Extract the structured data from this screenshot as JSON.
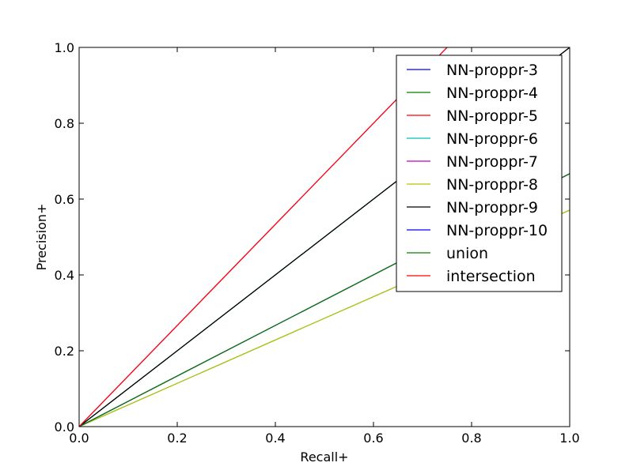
{
  "chart_data": {
    "type": "line",
    "xlabel": "Recall+",
    "ylabel": "Precision+",
    "xlim": [
      0.0,
      1.0
    ],
    "ylim": [
      0.0,
      1.0
    ],
    "xticks": [
      "0.0",
      "0.2",
      "0.4",
      "0.6",
      "0.8",
      "1.0"
    ],
    "yticks": [
      "0.0",
      "0.2",
      "0.4",
      "0.6",
      "0.8",
      "1.0"
    ],
    "grid": false,
    "legend_position": "top-right",
    "series": [
      {
        "name": "NN-proppr-3",
        "color": "#0000ff",
        "x": [
          0.0,
          1.0
        ],
        "y": [
          0.0,
          1.0
        ]
      },
      {
        "name": "NN-proppr-4",
        "color": "#008000",
        "x": [
          0.0,
          1.0
        ],
        "y": [
          0.0,
          1.0
        ]
      },
      {
        "name": "NN-proppr-5",
        "color": "#ff0000",
        "x": [
          0.0,
          1.0
        ],
        "y": [
          0.0,
          0.667
        ]
      },
      {
        "name": "NN-proppr-6",
        "color": "#00bfbf",
        "x": [
          0.0,
          1.0
        ],
        "y": [
          0.0,
          0.571
        ]
      },
      {
        "name": "NN-proppr-7",
        "color": "#bf00bf",
        "x": [
          0.0,
          0.75
        ],
        "y": [
          0.0,
          1.0
        ]
      },
      {
        "name": "NN-proppr-8",
        "color": "#bfbf00",
        "x": [
          0.0,
          1.0
        ],
        "y": [
          0.0,
          0.571
        ]
      },
      {
        "name": "NN-proppr-9",
        "color": "#000000",
        "x": [
          0.0,
          1.0
        ],
        "y": [
          0.0,
          1.0
        ]
      },
      {
        "name": "NN-proppr-10",
        "color": "#0000ff",
        "x": [
          0.0,
          1.0
        ],
        "y": [
          0.0,
          0.667
        ]
      },
      {
        "name": "union",
        "color": "#008000",
        "x": [
          0.0,
          1.0
        ],
        "y": [
          0.0,
          0.667
        ]
      },
      {
        "name": "intersection",
        "color": "#ff0000",
        "x": [
          0.0,
          0.75
        ],
        "y": [
          0.0,
          1.0
        ]
      }
    ]
  }
}
